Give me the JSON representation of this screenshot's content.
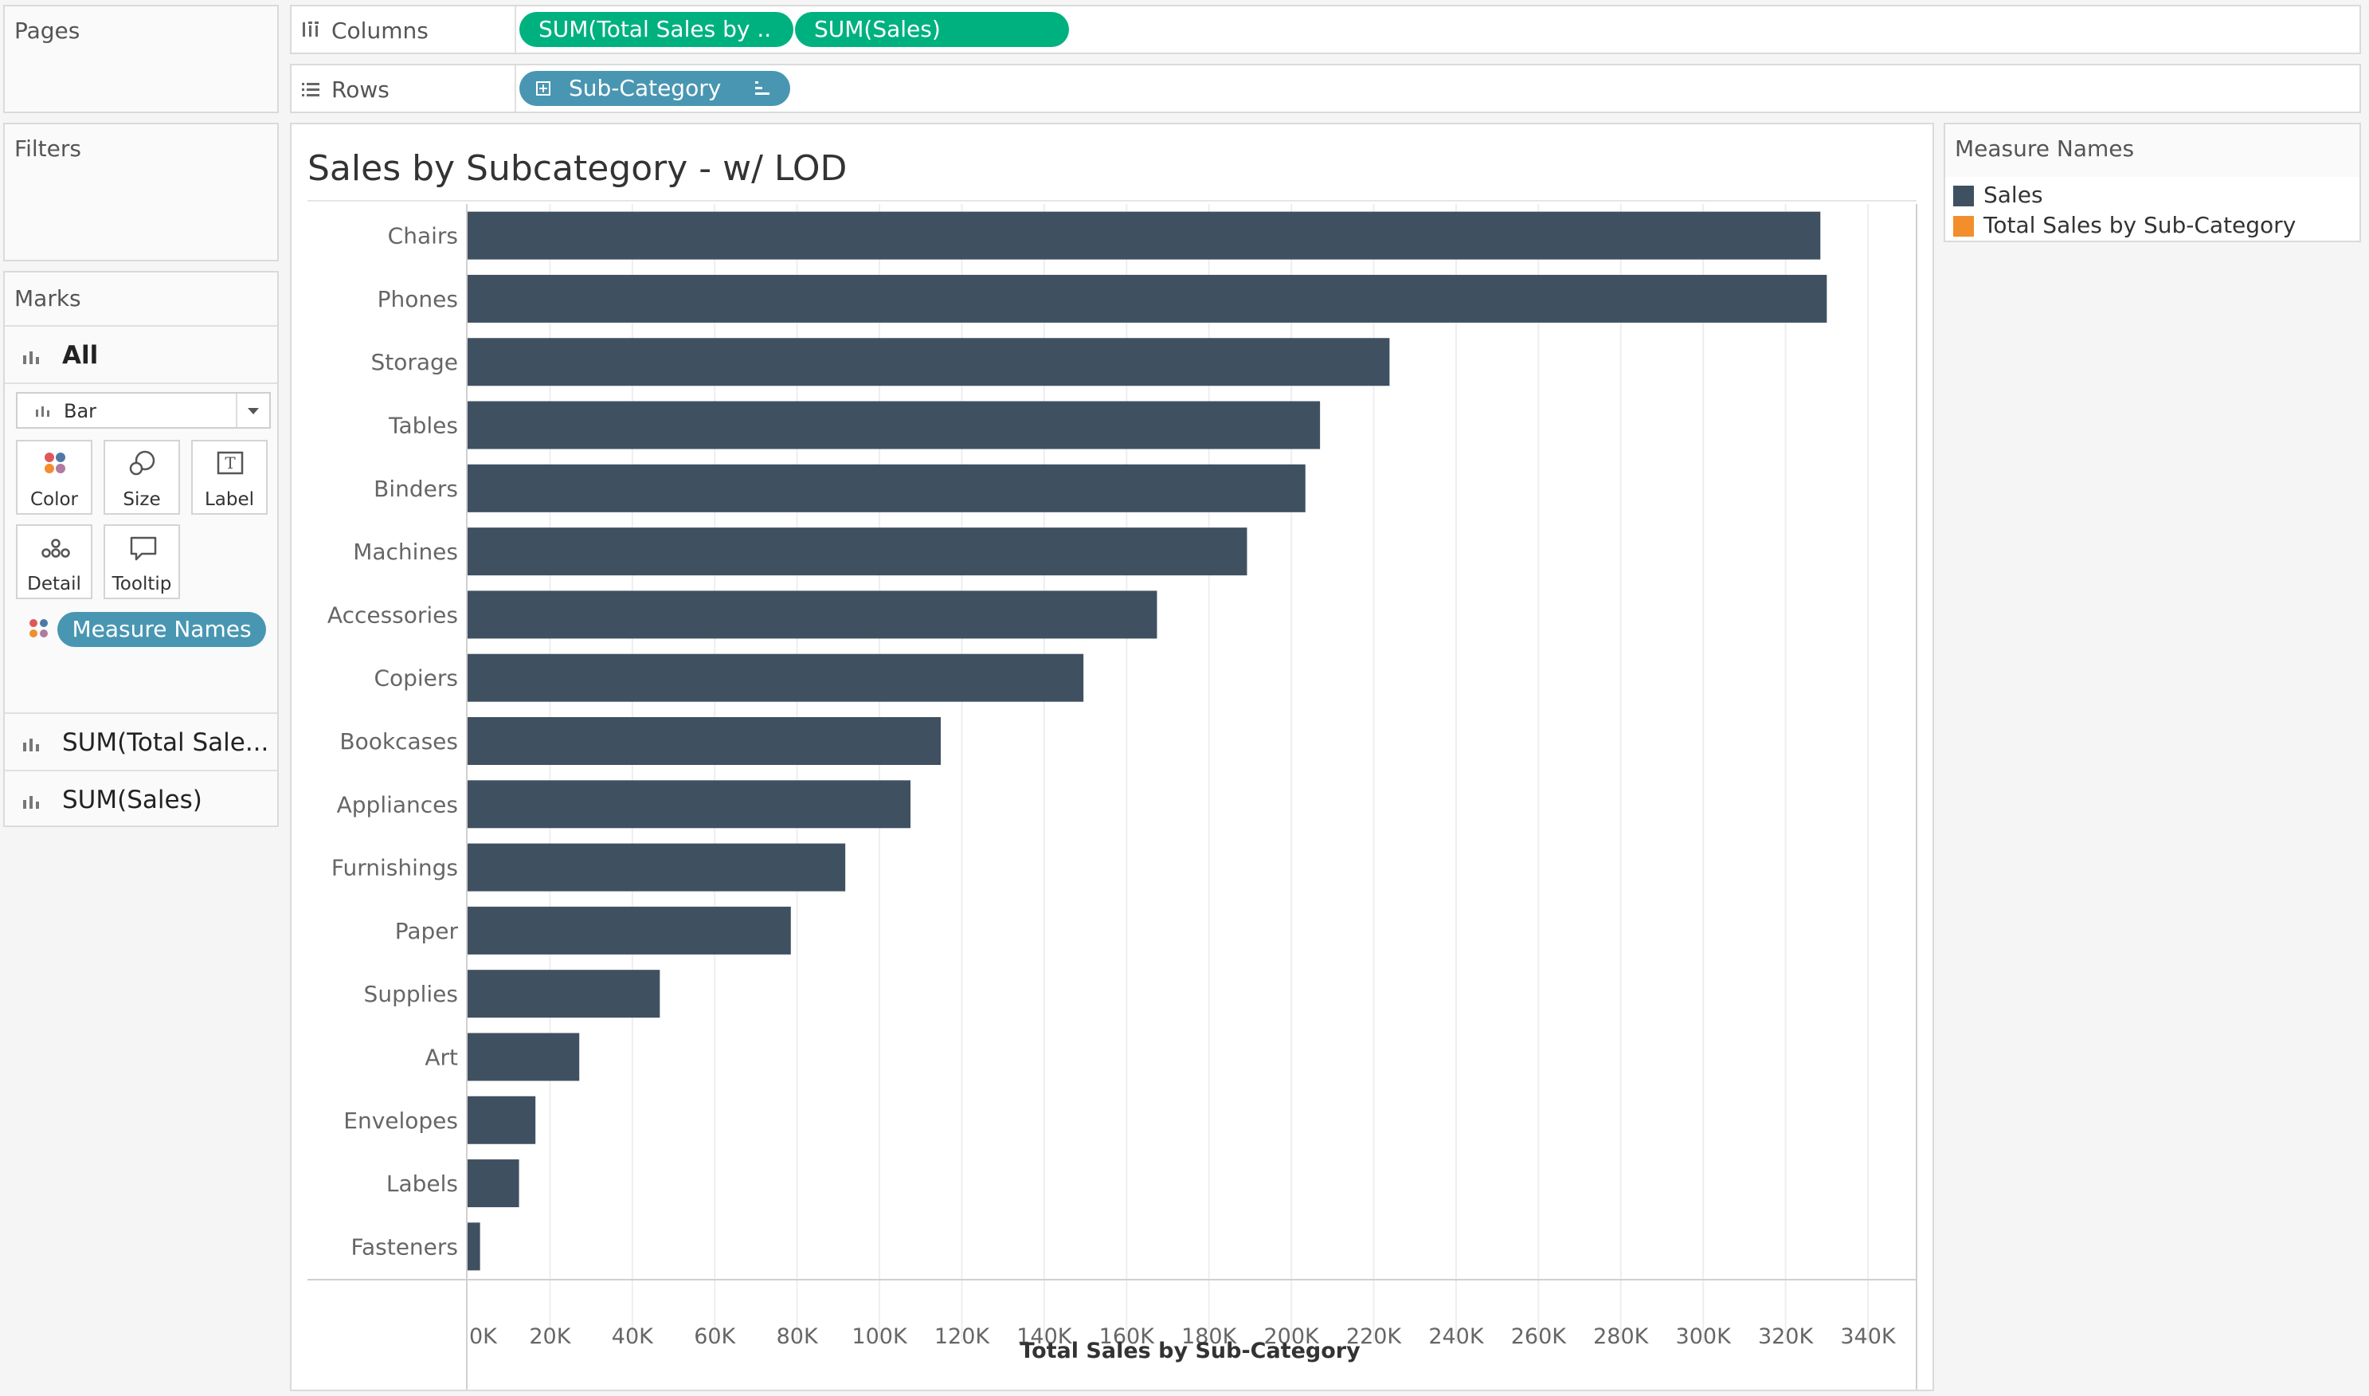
{
  "left_panel": {
    "pages_title": "Pages",
    "filters_title": "Filters",
    "marks_title": "Marks",
    "marks_all": "All",
    "mark_type": "Bar",
    "buttons": {
      "color": "Color",
      "size": "Size",
      "label": "Label",
      "detail": "Detail",
      "tooltip": "Tooltip"
    },
    "color_pill": "Measure Names",
    "measure_rows": [
      "SUM(Total Sale...",
      "SUM(Sales)"
    ]
  },
  "shelves": {
    "columns_label": "Columns",
    "columns_pills": [
      "SUM(Total Sales by ..",
      "SUM(Sales)"
    ],
    "rows_label": "Rows",
    "rows_pill": "Sub-Category"
  },
  "legend": {
    "title": "Measure Names",
    "items": [
      {
        "label": "Sales",
        "color": "#3f5061"
      },
      {
        "label": "Total Sales by Sub-Category",
        "color": "#f28e2b"
      }
    ]
  },
  "chart_data": {
    "type": "bar",
    "orientation": "horizontal",
    "title": "Sales by Subcategory - w/ LOD",
    "xlabel": "Total Sales by Sub-Category",
    "xlim": [
      0,
      350000
    ],
    "x_ticks": [
      0,
      20000,
      40000,
      60000,
      80000,
      100000,
      120000,
      140000,
      160000,
      180000,
      200000,
      220000,
      240000,
      260000,
      280000,
      300000,
      320000,
      340000
    ],
    "x_tick_labels": [
      "0K",
      "20K",
      "40K",
      "60K",
      "80K",
      "100K",
      "120K",
      "140K",
      "160K",
      "180K",
      "200K",
      "220K",
      "240K",
      "260K",
      "280K",
      "300K",
      "320K",
      "340K"
    ],
    "grid": "vertical",
    "bar_color": "#3f5061",
    "categories": [
      "Chairs",
      "Phones",
      "Storage",
      "Tables",
      "Binders",
      "Machines",
      "Accessories",
      "Copiers",
      "Bookcases",
      "Appliances",
      "Furnishings",
      "Paper",
      "Supplies",
      "Art",
      "Envelopes",
      "Labels",
      "Fasteners"
    ],
    "values": [
      328449,
      330007,
      223844,
      206966,
      203413,
      189239,
      167380,
      149528,
      114880,
      107532,
      91705,
      78479,
      46674,
      27119,
      16476,
      12486,
      3024
    ]
  }
}
